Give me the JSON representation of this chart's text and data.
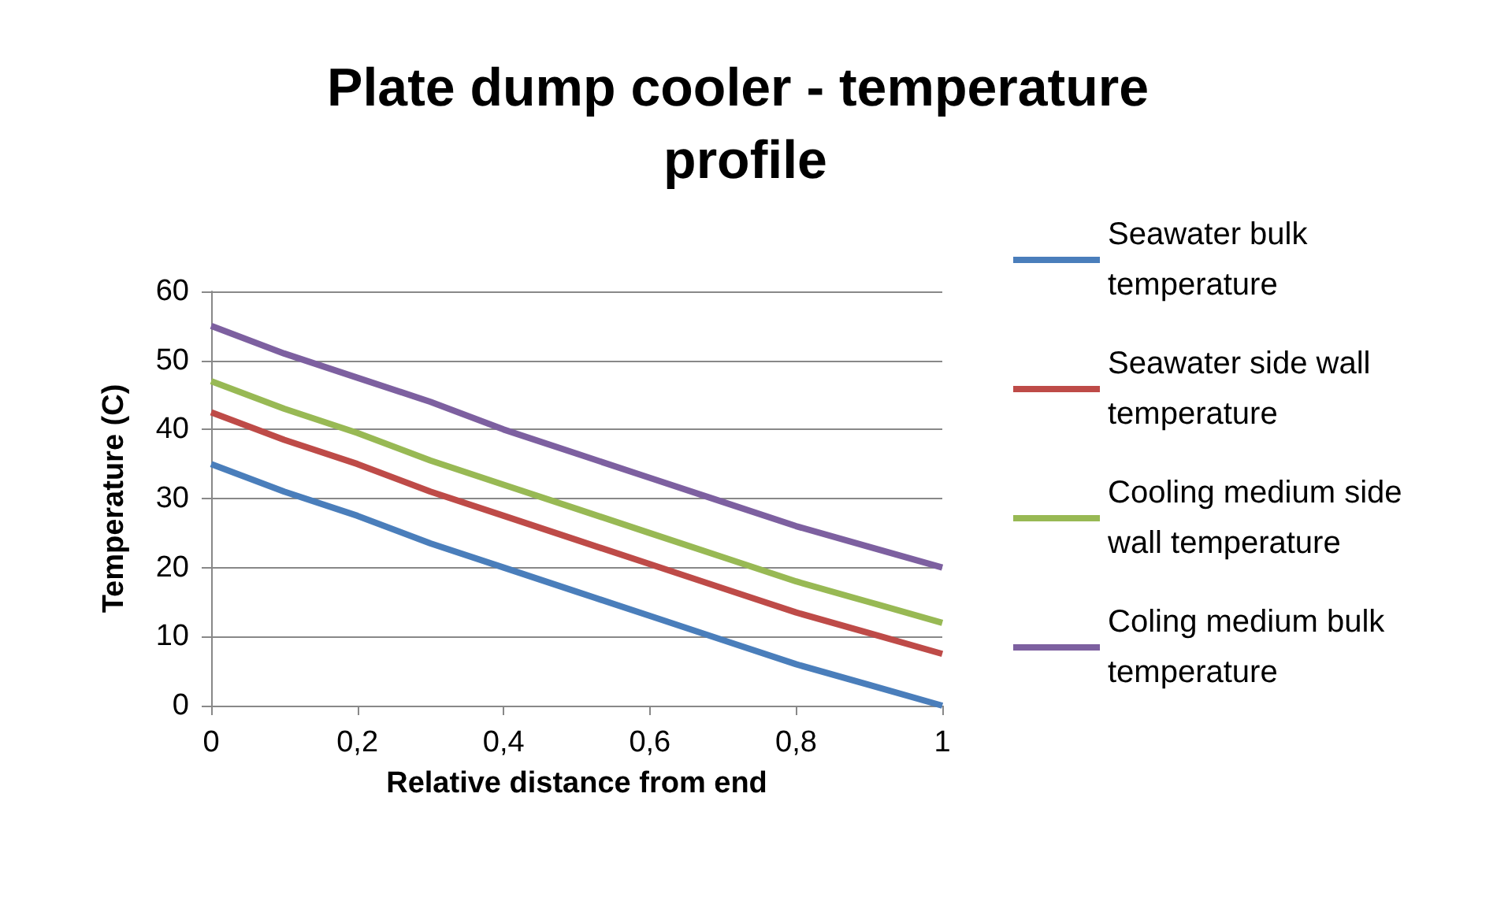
{
  "chart_data": {
    "type": "line",
    "title": "Plate dump cooler - temperature profile",
    "xlabel": "Relative distance from end",
    "ylabel": "Temperature (C)",
    "x": [
      0,
      0.1,
      0.2,
      0.3,
      0.4,
      0.5,
      0.6,
      0.7,
      0.8,
      0.9,
      1
    ],
    "series": [
      {
        "name": "Seawater bulk temperature",
        "color": "#4a7ebb",
        "values": [
          35,
          31,
          27.5,
          23.5,
          20,
          16.5,
          13,
          9.5,
          6,
          3,
          0
        ]
      },
      {
        "name": "Seawater side wall temperature",
        "color": "#be4b48",
        "values": [
          42.5,
          38.5,
          35,
          31,
          27.5,
          24,
          20.5,
          17,
          13.5,
          10.5,
          7.5
        ]
      },
      {
        "name": "Cooling medium side wall temperature",
        "color": "#98b954",
        "values": [
          47,
          43,
          39.5,
          35.5,
          32,
          28.5,
          25,
          21.5,
          18,
          15,
          12
        ]
      },
      {
        "name": "Coling medium bulk temperature",
        "color": "#7d60a0",
        "values": [
          55,
          51,
          47.5,
          44,
          40,
          36.5,
          33,
          29.5,
          26,
          23,
          20
        ]
      }
    ],
    "xlim": [
      0,
      1
    ],
    "xticks": [
      {
        "value": 0,
        "label": "0"
      },
      {
        "value": 0.2,
        "label": "0,2"
      },
      {
        "value": 0.4,
        "label": "0,4"
      },
      {
        "value": 0.6,
        "label": "0,6"
      },
      {
        "value": 0.8,
        "label": "0,8"
      },
      {
        "value": 1,
        "label": "1"
      }
    ],
    "ylim": [
      0,
      60
    ],
    "yticks": [
      0,
      10,
      20,
      30,
      40,
      50,
      60
    ],
    "grid": "y",
    "legend": "right",
    "marker": "none",
    "line_style": "solid"
  }
}
